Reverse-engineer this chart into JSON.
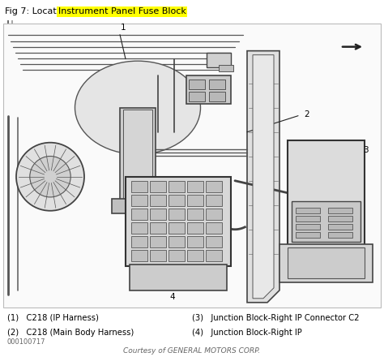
{
  "title_prefix": "Fig 7: Locating Right ",
  "title_highlight": "Instrument Panel Fuse Block",
  "title_highlight_bg": "#FFFF00",
  "title_fontsize": 8.0,
  "header_bg": "#CCCCCC",
  "body_bg": "#FFFFFF",
  "legend_items_left": [
    "(1)   C218 (IP Harness)",
    "(2)   C218 (Main Body Harness)"
  ],
  "legend_items_right": [
    "(3)   Junction Block-Right IP Connector C2",
    "(4)   Junction Block-Right IP"
  ],
  "part_number": "000100717",
  "courtesy": "Courtesy of GENERAL MOTORS CORP.",
  "courtesy_fontsize": 6.5,
  "legend_fontsize": 7.2,
  "fig_width": 4.74,
  "fig_height": 4.4,
  "dpi": 100,
  "dark": "#222222",
  "mid": "#666666",
  "light": "#AAAAAA",
  "xlight": "#DDDDDD"
}
